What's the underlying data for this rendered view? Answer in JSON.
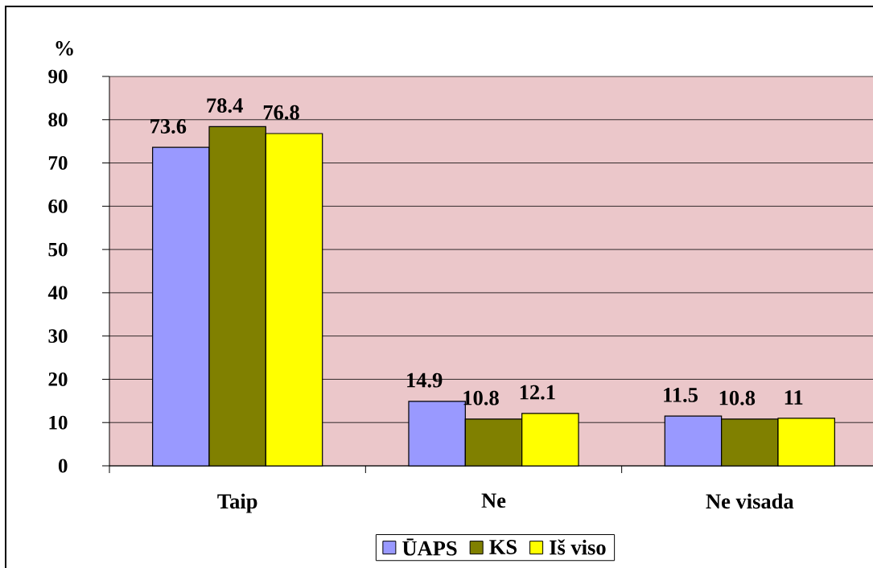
{
  "chart_data": {
    "type": "bar",
    "categories": [
      "Taip",
      "Ne",
      "Ne visada"
    ],
    "series": [
      {
        "name": "ŪAPS",
        "color": "#9999ff",
        "values": [
          73.6,
          14.9,
          11.5
        ]
      },
      {
        "name": "KS",
        "color": "#808000",
        "values": [
          78.4,
          10.8,
          10.8
        ]
      },
      {
        "name": "Iš viso",
        "color": "#ffff00",
        "values": [
          76.8,
          12.1,
          11
        ]
      }
    ],
    "ylabel": "%",
    "ylim": [
      0,
      90
    ],
    "yticks": [
      0,
      10,
      20,
      30,
      40,
      50,
      60,
      70,
      80,
      90
    ],
    "grid": "y",
    "legend": "bottom",
    "data_labels": true
  }
}
